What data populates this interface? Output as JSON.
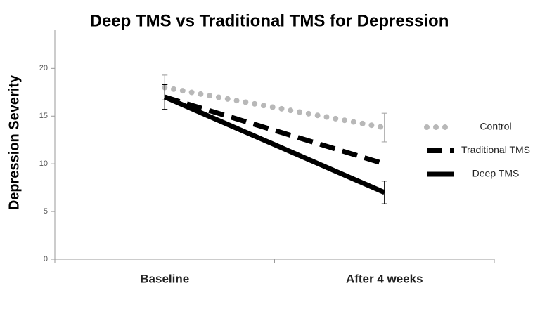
{
  "chart_data": {
    "type": "line",
    "title": "Deep TMS vs Traditional TMS for Depression",
    "y_label": "Depression Severity",
    "categories": [
      "Baseline",
      "After 4 weeks"
    ],
    "series": [
      {
        "name": "Control",
        "color": "#b8b8b8",
        "style": "dotted",
        "values": [
          18,
          13.8
        ],
        "errors": [
          1.3,
          1.5
        ]
      },
      {
        "name": "Traditional TMS",
        "color": "#000000",
        "style": "dashed",
        "values": [
          17,
          10
        ]
      },
      {
        "name": "Deep TMS",
        "color": "#000000",
        "style": "solid",
        "values": [
          17,
          7
        ],
        "errors": [
          1.3,
          1.2
        ]
      }
    ],
    "ylim": [
      0,
      24
    ],
    "yticks": [
      0,
      5,
      10,
      15,
      20
    ],
    "legend": "right"
  }
}
